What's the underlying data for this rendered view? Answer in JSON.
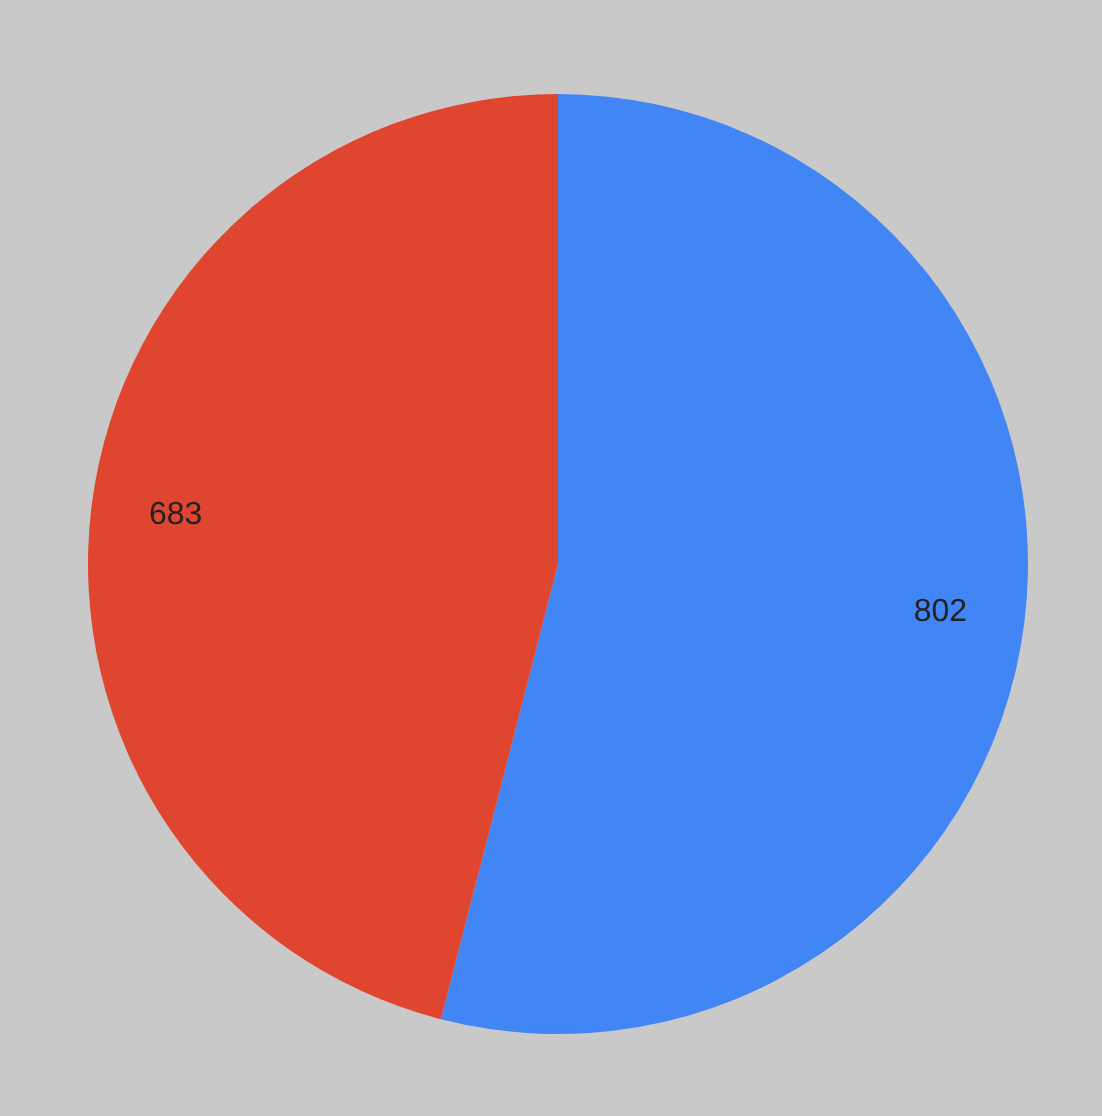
{
  "chart_data": {
    "type": "pie",
    "values": [
      802,
      683
    ],
    "colors": [
      "#4285f4",
      "#e0452f"
    ],
    "data_labels": true
  }
}
